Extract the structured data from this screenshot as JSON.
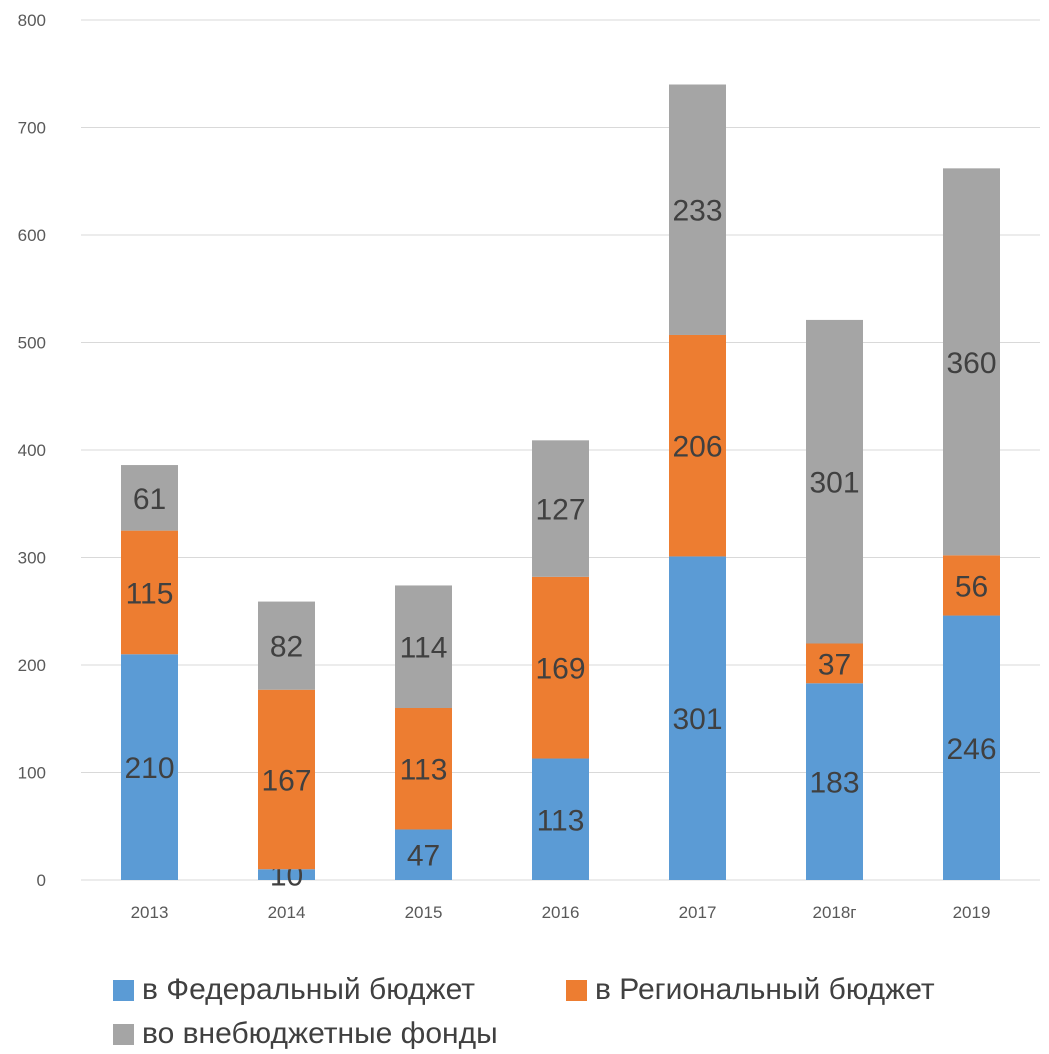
{
  "chart_data": {
    "type": "bar",
    "stacked": true,
    "categories": [
      "2013",
      "2014",
      "2015",
      "2016",
      "2017",
      "2018г",
      "2019"
    ],
    "series": [
      {
        "name": "в Федеральный бюджет",
        "color": "#5B9BD5",
        "values": [
          210,
          10,
          47,
          113,
          301,
          183,
          246
        ]
      },
      {
        "name": "в Региональный бюджет",
        "color": "#ED7D31",
        "values": [
          115,
          167,
          113,
          169,
          206,
          37,
          56
        ]
      },
      {
        "name": "во внебюджетные фонды",
        "color": "#A5A5A5",
        "values": [
          61,
          82,
          114,
          127,
          233,
          301,
          360
        ]
      }
    ],
    "ylim": [
      0,
      800
    ],
    "yticks": [
      0,
      100,
      200,
      300,
      400,
      500,
      600,
      700,
      800
    ],
    "grid": true,
    "legend_position": "bottom",
    "title": "",
    "xlabel": "",
    "ylabel": ""
  }
}
